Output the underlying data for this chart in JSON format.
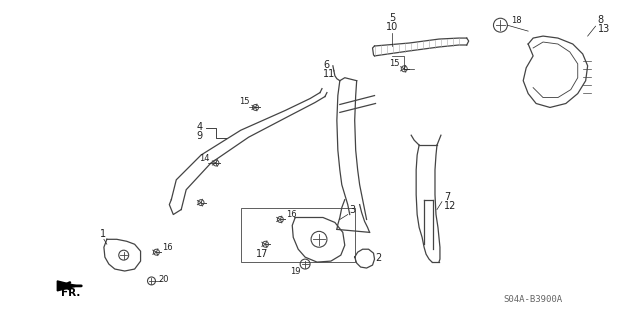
{
  "diagram_code": "S04A-B3900A",
  "background_color": "#ffffff",
  "line_color": "#444444",
  "fig_width": 6.4,
  "fig_height": 3.19,
  "dpi": 100
}
